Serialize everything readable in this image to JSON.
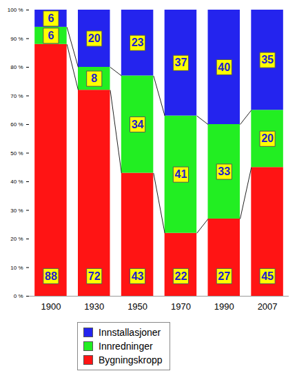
{
  "chart_data": {
    "type": "bar",
    "stacked": true,
    "data_labels": true,
    "legend": "bottom",
    "categories": [
      "1900",
      "1930",
      "1950",
      "1970",
      "1990",
      "2007"
    ],
    "series": [
      {
        "name": "Bygningskropp",
        "color": "#ff1414",
        "values": [
          88,
          72,
          43,
          22,
          27,
          45
        ]
      },
      {
        "name": "Innredninger",
        "color": "#22ee22",
        "values": [
          6,
          8,
          34,
          41,
          33,
          20
        ]
      },
      {
        "name": "Innstallasjoner",
        "color": "#2424ee",
        "values": [
          6,
          20,
          23,
          37,
          40,
          35
        ]
      }
    ],
    "ylim": [
      0,
      100
    ],
    "yticks": [
      {
        "value": 0,
        "label": "0 %"
      },
      {
        "value": 10,
        "label": "10 %"
      },
      {
        "value": 20,
        "label": "20 %"
      },
      {
        "value": 30,
        "label": "30 %"
      },
      {
        "value": 40,
        "label": "40 %"
      },
      {
        "value": 50,
        "label": "50 %"
      },
      {
        "value": 60,
        "label": "60 %"
      },
      {
        "value": 70,
        "label": "70 %"
      },
      {
        "value": 80,
        "label": "80 %"
      },
      {
        "value": 90,
        "label": "90 %"
      },
      {
        "value": 100,
        "label": "100 %"
      }
    ]
  }
}
